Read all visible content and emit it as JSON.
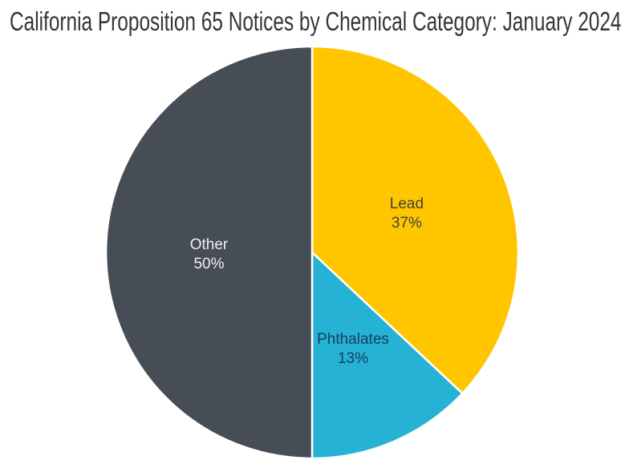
{
  "chart_data": {
    "type": "pie",
    "title": "California Proposition 65 Notices by Chemical Category: January 2024",
    "title_color": "#363636",
    "background": "#FFFFFF",
    "separator_color": "#FFFFFF",
    "legend": "none",
    "start_angle_deg": 0,
    "direction": "clockwise",
    "slices": [
      {
        "label": "Lead",
        "value": 37,
        "pct_label": "37%",
        "color": "#FFC600",
        "label_color": "#41423B"
      },
      {
        "label": "Phthalates",
        "value": 13,
        "pct_label": "13%",
        "color": "#26B2D5",
        "label_color": "#17405C"
      },
      {
        "label": "Other",
        "value": 50,
        "pct_label": "50%",
        "color": "#464D54",
        "label_color": "#EFEFEF"
      }
    ]
  }
}
